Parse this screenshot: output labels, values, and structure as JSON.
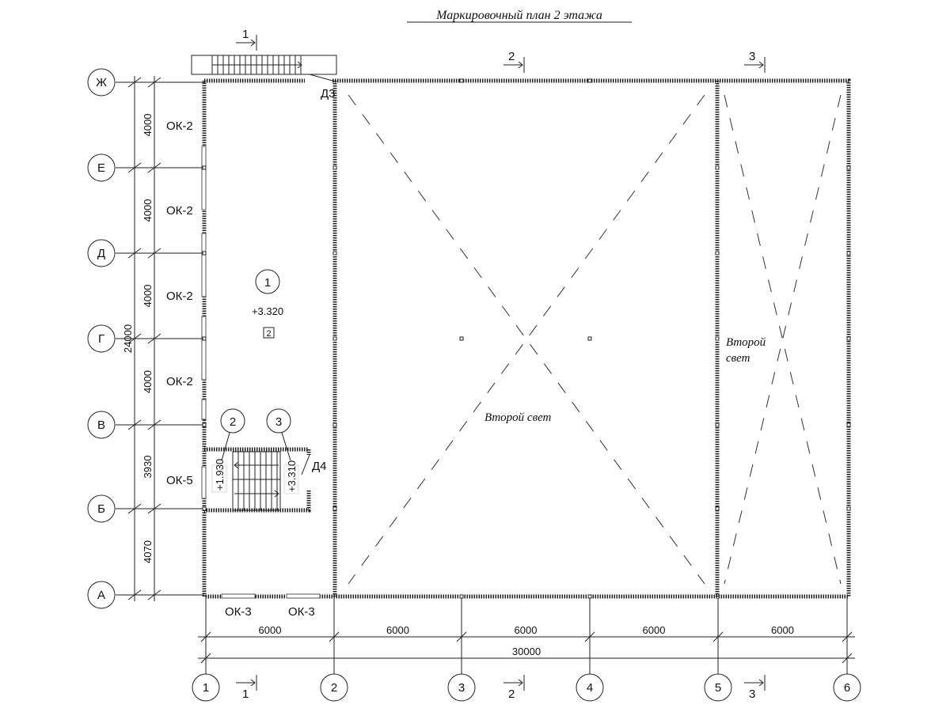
{
  "title": "Маркировочный план 2 этажа",
  "row_axes": [
    "Ж",
    "Е",
    "Д",
    "Г",
    "В",
    "Б",
    "А"
  ],
  "column_axes": [
    "1",
    "2",
    "3",
    "4",
    "5",
    "6"
  ],
  "row_dimensions": [
    "4000",
    "4000",
    "4000",
    "4000",
    "3930",
    "4070"
  ],
  "row_total": "24000",
  "column_dimensions": [
    "6000",
    "6000",
    "6000",
    "6000",
    "6000"
  ],
  "column_total": "30000",
  "section_marks": [
    "1",
    "2",
    "3"
  ],
  "window_labels_left": [
    "ОК-2",
    "ОК-2",
    "ОК-2",
    "ОК-2",
    "ОК-5"
  ],
  "window_labels_bottom": [
    "ОК-3",
    "ОК-3"
  ],
  "door_labels": [
    "Д3",
    "Д4"
  ],
  "rooms": [
    {
      "number": "1",
      "level": "+3.320",
      "area_tag": "2"
    },
    {
      "number": "2",
      "level": "+1.930"
    },
    {
      "number": "3",
      "level": "+3.310"
    }
  ],
  "void_labels": [
    "Второй свет",
    "Второй",
    "свет"
  ]
}
